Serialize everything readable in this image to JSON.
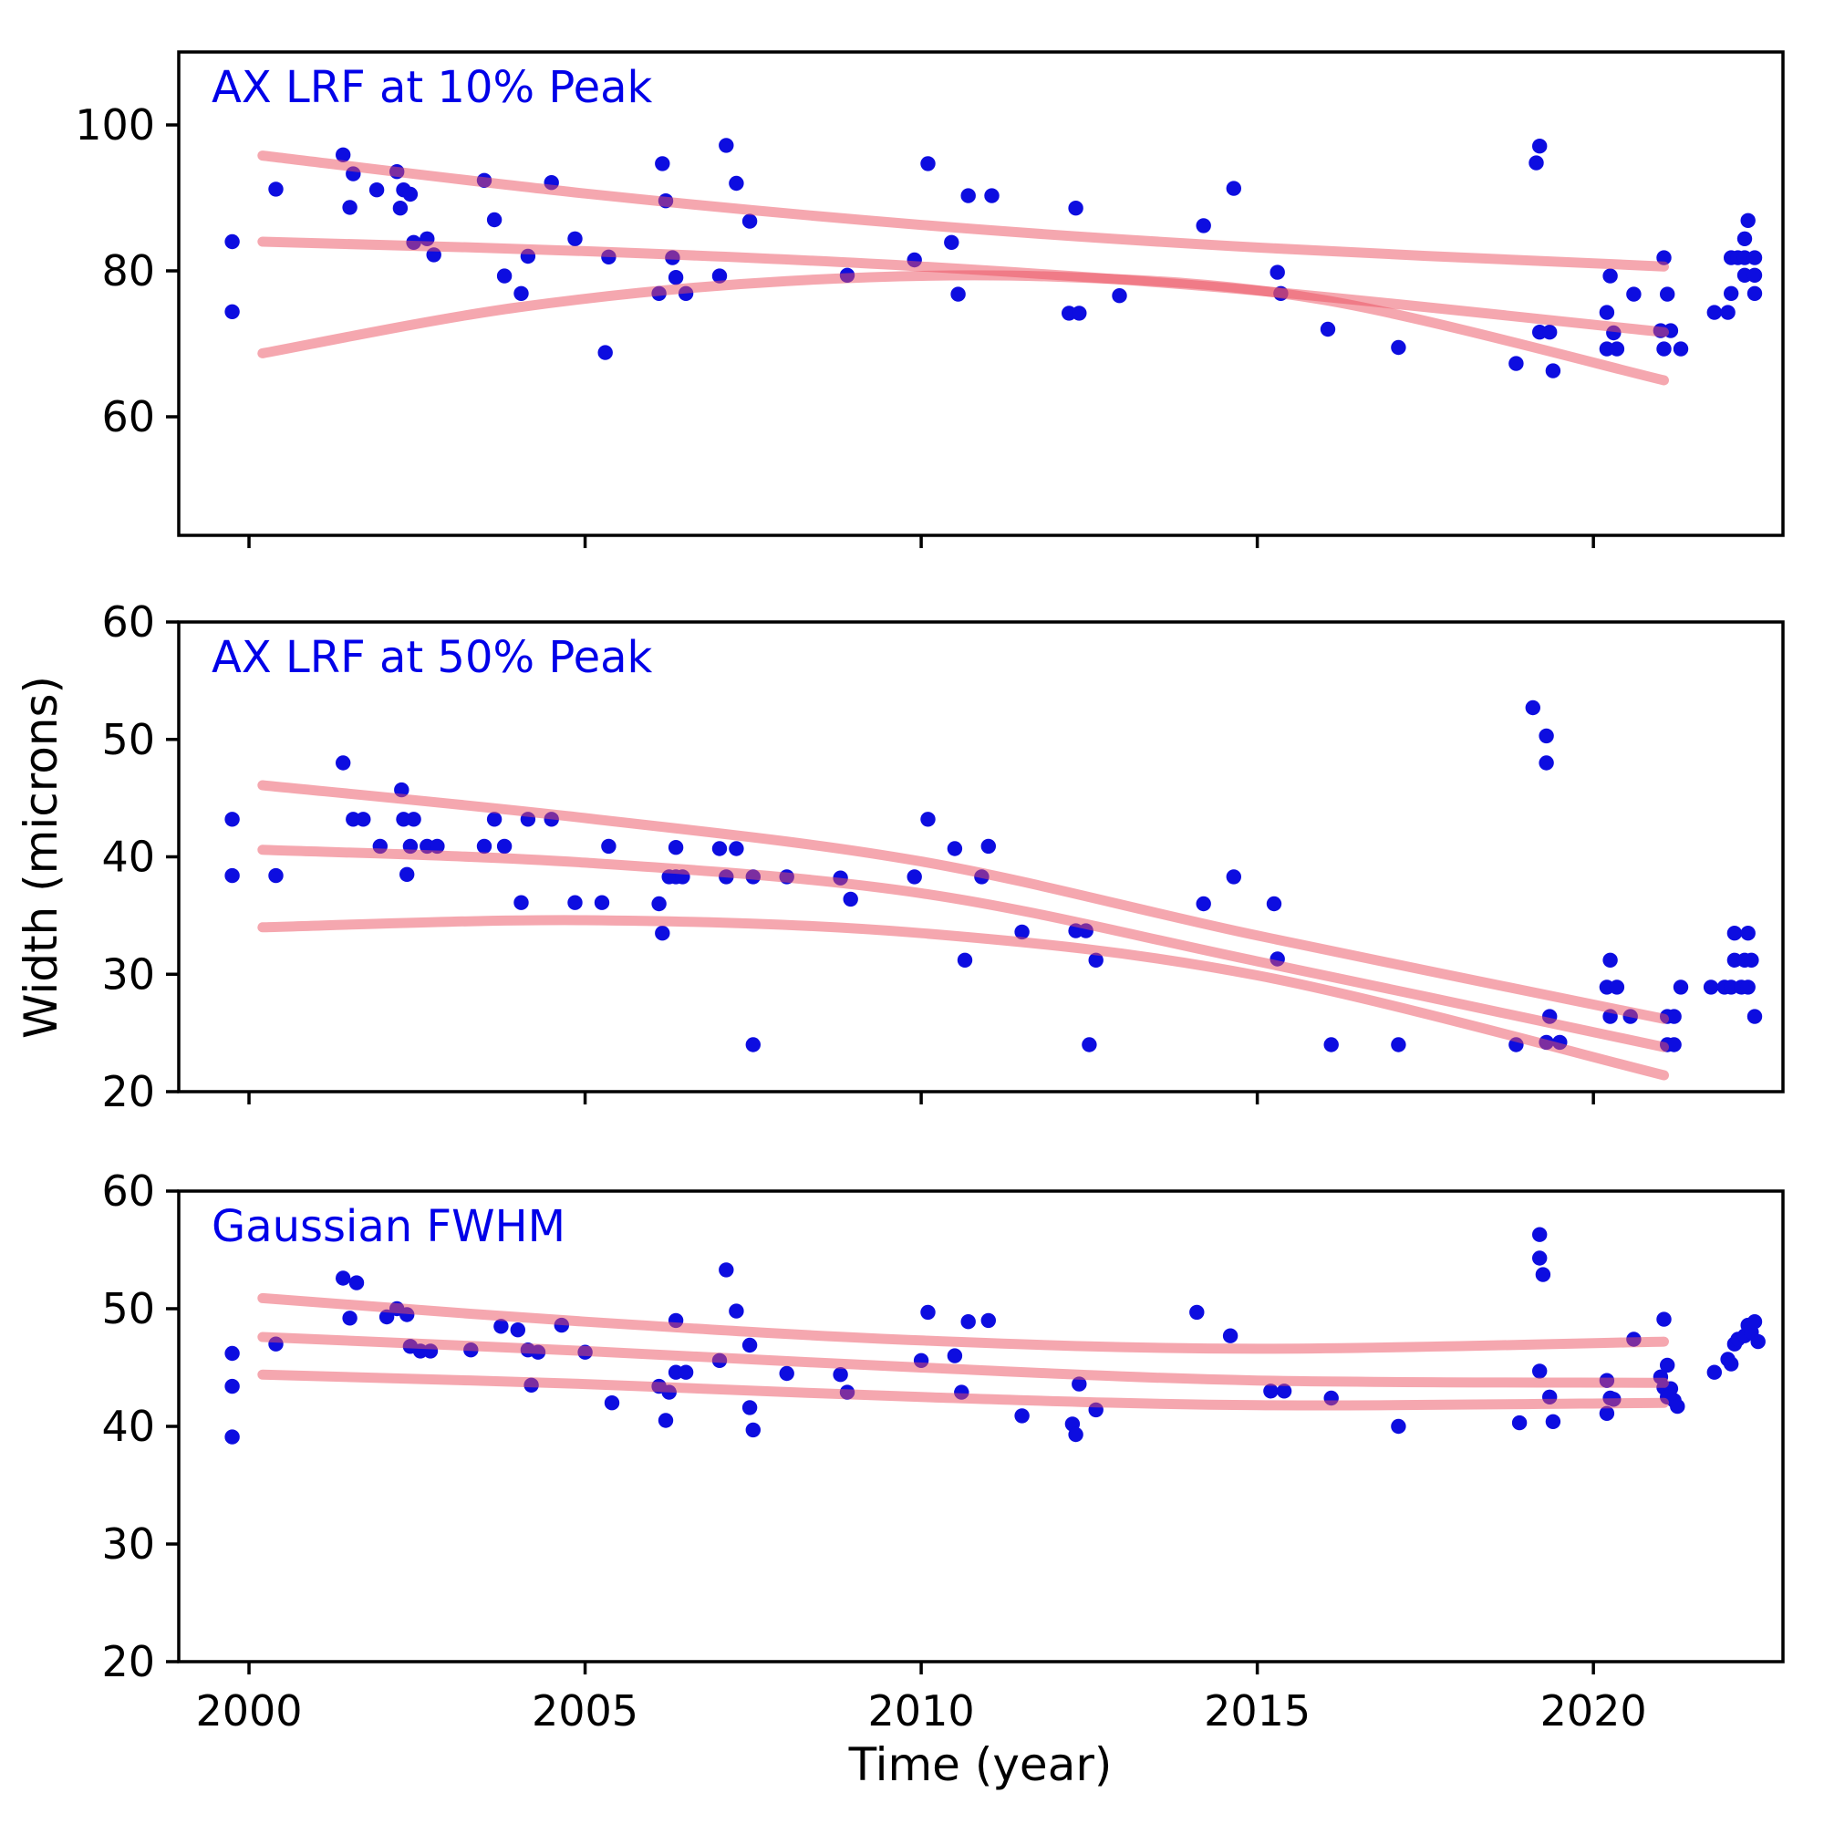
{
  "figure": {
    "background": "#ffffff",
    "colors": {
      "dot": "#0d0de0",
      "trend": "#eb505f",
      "trend_opacity": 0.5,
      "title": "#0000e8",
      "axis": "#000000"
    }
  },
  "xlabel": "Time (year)",
  "ylabel": "Width (microns)",
  "x_ticks": [
    2000,
    2005,
    2010,
    2015,
    2020
  ],
  "x_range": [
    1998.955,
    2022.82
  ],
  "chart_data": [
    {
      "type": "scatter",
      "title": "AX LRF at 10% Peak",
      "ylim": [
        43.75,
        110
      ],
      "yticks": [
        60,
        80,
        100
      ],
      "legend": "none",
      "grid": false,
      "points": [
        [
          1999.75,
          84
        ],
        [
          1999.75,
          74.4
        ],
        [
          2000.4,
          91.2
        ],
        [
          2001.4,
          95.9
        ],
        [
          2001.5,
          88.7
        ],
        [
          2001.55,
          93.3
        ],
        [
          2001.9,
          91.1
        ],
        [
          2002.2,
          93.6
        ],
        [
          2002.25,
          88.6
        ],
        [
          2002.3,
          91.1
        ],
        [
          2002.4,
          90.5
        ],
        [
          2002.45,
          83.9
        ],
        [
          2002.65,
          84.4
        ],
        [
          2002.75,
          82.2
        ],
        [
          2003.5,
          92.4
        ],
        [
          2003.65,
          87
        ],
        [
          2003.8,
          79.3
        ],
        [
          2004.05,
          76.9
        ],
        [
          2004.15,
          82
        ],
        [
          2004.5,
          92.1
        ],
        [
          2004.85,
          84.4
        ],
        [
          2005.3,
          68.8
        ],
        [
          2005.35,
          81.9
        ],
        [
          2006.1,
          76.9
        ],
        [
          2006.15,
          94.7
        ],
        [
          2006.2,
          89.6
        ],
        [
          2006.3,
          81.8
        ],
        [
          2006.35,
          79.1
        ],
        [
          2006.5,
          76.9
        ],
        [
          2007,
          79.3
        ],
        [
          2007.1,
          97.2
        ],
        [
          2007.25,
          92
        ],
        [
          2007.45,
          86.8
        ],
        [
          2008.9,
          79.4
        ],
        [
          2009.9,
          81.5
        ],
        [
          2010.1,
          94.7
        ],
        [
          2010.45,
          83.9
        ],
        [
          2010.55,
          76.8
        ],
        [
          2010.7,
          90.3
        ],
        [
          2011.05,
          90.3
        ],
        [
          2012.2,
          74.2
        ],
        [
          2012.3,
          88.6
        ],
        [
          2012.35,
          74.2
        ],
        [
          2012.95,
          76.6
        ],
        [
          2014.2,
          86.2
        ],
        [
          2014.65,
          91.3
        ],
        [
          2015.3,
          79.8
        ],
        [
          2015.35,
          76.9
        ],
        [
          2016.05,
          72
        ],
        [
          2017.1,
          69.5
        ],
        [
          2018.85,
          67.3
        ],
        [
          2019.4,
          66.3
        ],
        [
          2019.15,
          94.8
        ],
        [
          2019.2,
          97.1
        ],
        [
          2019.2,
          71.6
        ],
        [
          2019.35,
          71.6
        ],
        [
          2020.2,
          74.3
        ],
        [
          2020.25,
          79.3
        ],
        [
          2020.3,
          71.5
        ],
        [
          2020.2,
          69.3
        ],
        [
          2020.35,
          69.3
        ],
        [
          2020.6,
          76.8
        ],
        [
          2021.05,
          81.8
        ],
        [
          2021.1,
          76.8
        ],
        [
          2021,
          71.8
        ],
        [
          2021.15,
          71.8
        ],
        [
          2021.05,
          69.3
        ],
        [
          2021.3,
          69.3
        ],
        [
          2021.8,
          74.3
        ],
        [
          2022,
          74.3
        ],
        [
          2022.05,
          81.8
        ],
        [
          2022.15,
          81.8
        ],
        [
          2022.25,
          81.8
        ],
        [
          2022.4,
          81.8
        ],
        [
          2022.25,
          79.4
        ],
        [
          2022.4,
          79.4
        ],
        [
          2022.05,
          76.9
        ],
        [
          2022.4,
          76.9
        ],
        [
          2022.25,
          84.4
        ],
        [
          2022.3,
          86.9
        ]
      ],
      "trend_lines": [
        [
          [
            2000.2,
            95.8
          ],
          [
            2005,
            90.6
          ],
          [
            2010,
            86.3
          ],
          [
            2015,
            83.2
          ],
          [
            2021.05,
            80.6
          ]
        ],
        [
          [
            2000.2,
            84.0
          ],
          [
            2005,
            82.7
          ],
          [
            2010,
            80.6
          ],
          [
            2015,
            77.3
          ],
          [
            2021.05,
            71.6
          ]
        ],
        [
          [
            2000.2,
            68.7
          ],
          [
            2004,
            75.0
          ],
          [
            2008,
            78.6
          ],
          [
            2012,
            79.2
          ],
          [
            2016,
            76.0
          ],
          [
            2021.05,
            65.0
          ]
        ]
      ]
    },
    {
      "type": "scatter",
      "title": "AX LRF at 50% Peak",
      "ylim": [
        20,
        60
      ],
      "yticks": [
        20,
        30,
        40,
        50,
        60
      ],
      "legend": "none",
      "grid": false,
      "points": [
        [
          1999.75,
          43.2
        ],
        [
          1999.75,
          38.4
        ],
        [
          2000.4,
          38.4
        ],
        [
          2001.4,
          48
        ],
        [
          2001.55,
          43.2
        ],
        [
          2001.7,
          43.2
        ],
        [
          2001.95,
          40.9
        ],
        [
          2002.27,
          45.7
        ],
        [
          2002.3,
          43.2
        ],
        [
          2002.45,
          43.2
        ],
        [
          2002.4,
          40.9
        ],
        [
          2002.65,
          40.9
        ],
        [
          2002.8,
          40.9
        ],
        [
          2002.35,
          38.5
        ],
        [
          2003.5,
          40.9
        ],
        [
          2003.65,
          43.2
        ],
        [
          2003.8,
          40.9
        ],
        [
          2004.05,
          36.1
        ],
        [
          2004.15,
          43.2
        ],
        [
          2004.5,
          43.2
        ],
        [
          2004.85,
          36.1
        ],
        [
          2005.25,
          36.1
        ],
        [
          2005.35,
          40.9
        ],
        [
          2006.1,
          36
        ],
        [
          2006.15,
          33.5
        ],
        [
          2006.25,
          38.3
        ],
        [
          2006.35,
          38.3
        ],
        [
          2006.45,
          38.3
        ],
        [
          2006.35,
          40.8
        ],
        [
          2007,
          40.7
        ],
        [
          2007.25,
          40.7
        ],
        [
          2007.1,
          38.3
        ],
        [
          2007.5,
          38.3
        ],
        [
          2007.5,
          24
        ],
        [
          2008,
          38.3
        ],
        [
          2008.8,
          38.2
        ],
        [
          2008.95,
          36.4
        ],
        [
          2009.9,
          38.3
        ],
        [
          2010.1,
          43.2
        ],
        [
          2010.5,
          40.7
        ],
        [
          2010.9,
          38.3
        ],
        [
          2010.65,
          31.2
        ],
        [
          2011,
          40.9
        ],
        [
          2011.5,
          33.6
        ],
        [
          2012.3,
          33.7
        ],
        [
          2012.45,
          33.7
        ],
        [
          2012.6,
          31.2
        ],
        [
          2012.5,
          24
        ],
        [
          2014.2,
          36
        ],
        [
          2014.65,
          38.3
        ],
        [
          2015.25,
          36
        ],
        [
          2015.3,
          31.3
        ],
        [
          2016.1,
          24
        ],
        [
          2017.1,
          24
        ],
        [
          2018.85,
          24
        ],
        [
          2019.1,
          52.7
        ],
        [
          2019.3,
          50.3
        ],
        [
          2019.3,
          48
        ],
        [
          2019.35,
          26.4
        ],
        [
          2019.3,
          24.2
        ],
        [
          2019.5,
          24.2
        ],
        [
          2020.25,
          31.2
        ],
        [
          2020.2,
          28.9
        ],
        [
          2020.35,
          28.9
        ],
        [
          2020.25,
          26.4
        ],
        [
          2020.55,
          26.4
        ],
        [
          2021.1,
          26.4
        ],
        [
          2021.2,
          26.4
        ],
        [
          2021.1,
          24
        ],
        [
          2021.2,
          24
        ],
        [
          2021.3,
          28.9
        ],
        [
          2021.75,
          28.9
        ],
        [
          2021.95,
          28.9
        ],
        [
          2022.05,
          28.9
        ],
        [
          2022.2,
          28.9
        ],
        [
          2022.3,
          28.9
        ],
        [
          2022.1,
          31.2
        ],
        [
          2022.25,
          31.2
        ],
        [
          2022.35,
          31.2
        ],
        [
          2022.1,
          33.5
        ],
        [
          2022.3,
          33.5
        ],
        [
          2022.4,
          26.4
        ]
      ],
      "trend_lines": [
        [
          [
            2000.2,
            46.1
          ],
          [
            2005,
            43.3
          ],
          [
            2010,
            39.6
          ],
          [
            2015,
            33.3
          ],
          [
            2021.05,
            26.2
          ]
        ],
        [
          [
            2000.2,
            40.6
          ],
          [
            2005,
            39.5
          ],
          [
            2010,
            36.9
          ],
          [
            2015,
            31.1
          ],
          [
            2021.05,
            23.8
          ]
        ],
        [
          [
            2000.2,
            34.0
          ],
          [
            2005,
            34.6
          ],
          [
            2010,
            33.5
          ],
          [
            2015,
            29.9
          ],
          [
            2021.05,
            21.4
          ]
        ]
      ]
    },
    {
      "type": "scatter",
      "title": "Gaussian FWHM",
      "ylim": [
        20,
        60
      ],
      "yticks": [
        20,
        30,
        40,
        50,
        60
      ],
      "legend": "none",
      "grid": false,
      "points": [
        [
          1999.75,
          46.2
        ],
        [
          1999.75,
          43.4
        ],
        [
          1999.75,
          39.1
        ],
        [
          2000.4,
          47
        ],
        [
          2001.4,
          52.6
        ],
        [
          2001.6,
          52.2
        ],
        [
          2001.5,
          49.2
        ],
        [
          2002.05,
          49.3
        ],
        [
          2002.2,
          50
        ],
        [
          2002.35,
          49.5
        ],
        [
          2002.4,
          46.8
        ],
        [
          2002.55,
          46.4
        ],
        [
          2002.7,
          46.4
        ],
        [
          2003.3,
          46.5
        ],
        [
          2003.75,
          48.5
        ],
        [
          2004,
          48.2
        ],
        [
          2004.15,
          46.5
        ],
        [
          2004.3,
          46.3
        ],
        [
          2004.2,
          43.5
        ],
        [
          2004.65,
          48.6
        ],
        [
          2005,
          46.3
        ],
        [
          2005.4,
          42
        ],
        [
          2006.1,
          43.4
        ],
        [
          2006.25,
          42.9
        ],
        [
          2006.2,
          40.5
        ],
        [
          2006.35,
          44.6
        ],
        [
          2006.5,
          44.6
        ],
        [
          2006.35,
          49
        ],
        [
          2007,
          45.6
        ],
        [
          2007.1,
          53.3
        ],
        [
          2007.25,
          49.8
        ],
        [
          2007.45,
          46.9
        ],
        [
          2007.45,
          41.6
        ],
        [
          2007.5,
          39.7
        ],
        [
          2008,
          44.5
        ],
        [
          2008.8,
          44.4
        ],
        [
          2008.9,
          42.9
        ],
        [
          2010,
          45.6
        ],
        [
          2010.1,
          49.7
        ],
        [
          2010.5,
          46
        ],
        [
          2010.6,
          42.9
        ],
        [
          2010.7,
          48.9
        ],
        [
          2011,
          49
        ],
        [
          2011.5,
          40.9
        ],
        [
          2012.25,
          40.2
        ],
        [
          2012.3,
          39.3
        ],
        [
          2012.35,
          43.6
        ],
        [
          2012.6,
          41.4
        ],
        [
          2014.1,
          49.7
        ],
        [
          2014.6,
          47.7
        ],
        [
          2015.2,
          43
        ],
        [
          2015.4,
          43
        ],
        [
          2016.1,
          42.4
        ],
        [
          2017.1,
          40
        ],
        [
          2018.9,
          40.3
        ],
        [
          2019.2,
          56.3
        ],
        [
          2019.2,
          54.3
        ],
        [
          2019.25,
          52.9
        ],
        [
          2019.2,
          44.7
        ],
        [
          2019.35,
          42.5
        ],
        [
          2019.4,
          40.4
        ],
        [
          2020.2,
          43.9
        ],
        [
          2020.25,
          42.4
        ],
        [
          2020.3,
          42.3
        ],
        [
          2020.2,
          41.1
        ],
        [
          2020.6,
          47.4
        ],
        [
          2021.05,
          49.1
        ],
        [
          2021.1,
          45.2
        ],
        [
          2021,
          44.2
        ],
        [
          2021.05,
          43.3
        ],
        [
          2021.15,
          43.2
        ],
        [
          2021.1,
          42.5
        ],
        [
          2021.2,
          42.2
        ],
        [
          2021.25,
          41.7
        ],
        [
          2021.8,
          44.6
        ],
        [
          2022,
          45.7
        ],
        [
          2022.05,
          45.3
        ],
        [
          2022.1,
          47
        ],
        [
          2022.15,
          47.4
        ],
        [
          2022.25,
          47.7
        ],
        [
          2022.3,
          48.6
        ],
        [
          2022.35,
          48
        ],
        [
          2022.4,
          48.9
        ],
        [
          2022.45,
          47.2
        ]
      ],
      "trend_lines": [
        [
          [
            2000.2,
            50.9
          ],
          [
            2005,
            48.9
          ],
          [
            2010,
            47.3
          ],
          [
            2015,
            46.6
          ],
          [
            2021.05,
            47.2
          ]
        ],
        [
          [
            2000.2,
            47.6
          ],
          [
            2005,
            46.4
          ],
          [
            2010,
            45.0
          ],
          [
            2015,
            43.9
          ],
          [
            2021.05,
            43.7
          ]
        ],
        [
          [
            2000.2,
            44.4
          ],
          [
            2005,
            43.6
          ],
          [
            2010,
            42.5
          ],
          [
            2015,
            41.8
          ],
          [
            2021.05,
            42.0
          ]
        ]
      ]
    }
  ]
}
